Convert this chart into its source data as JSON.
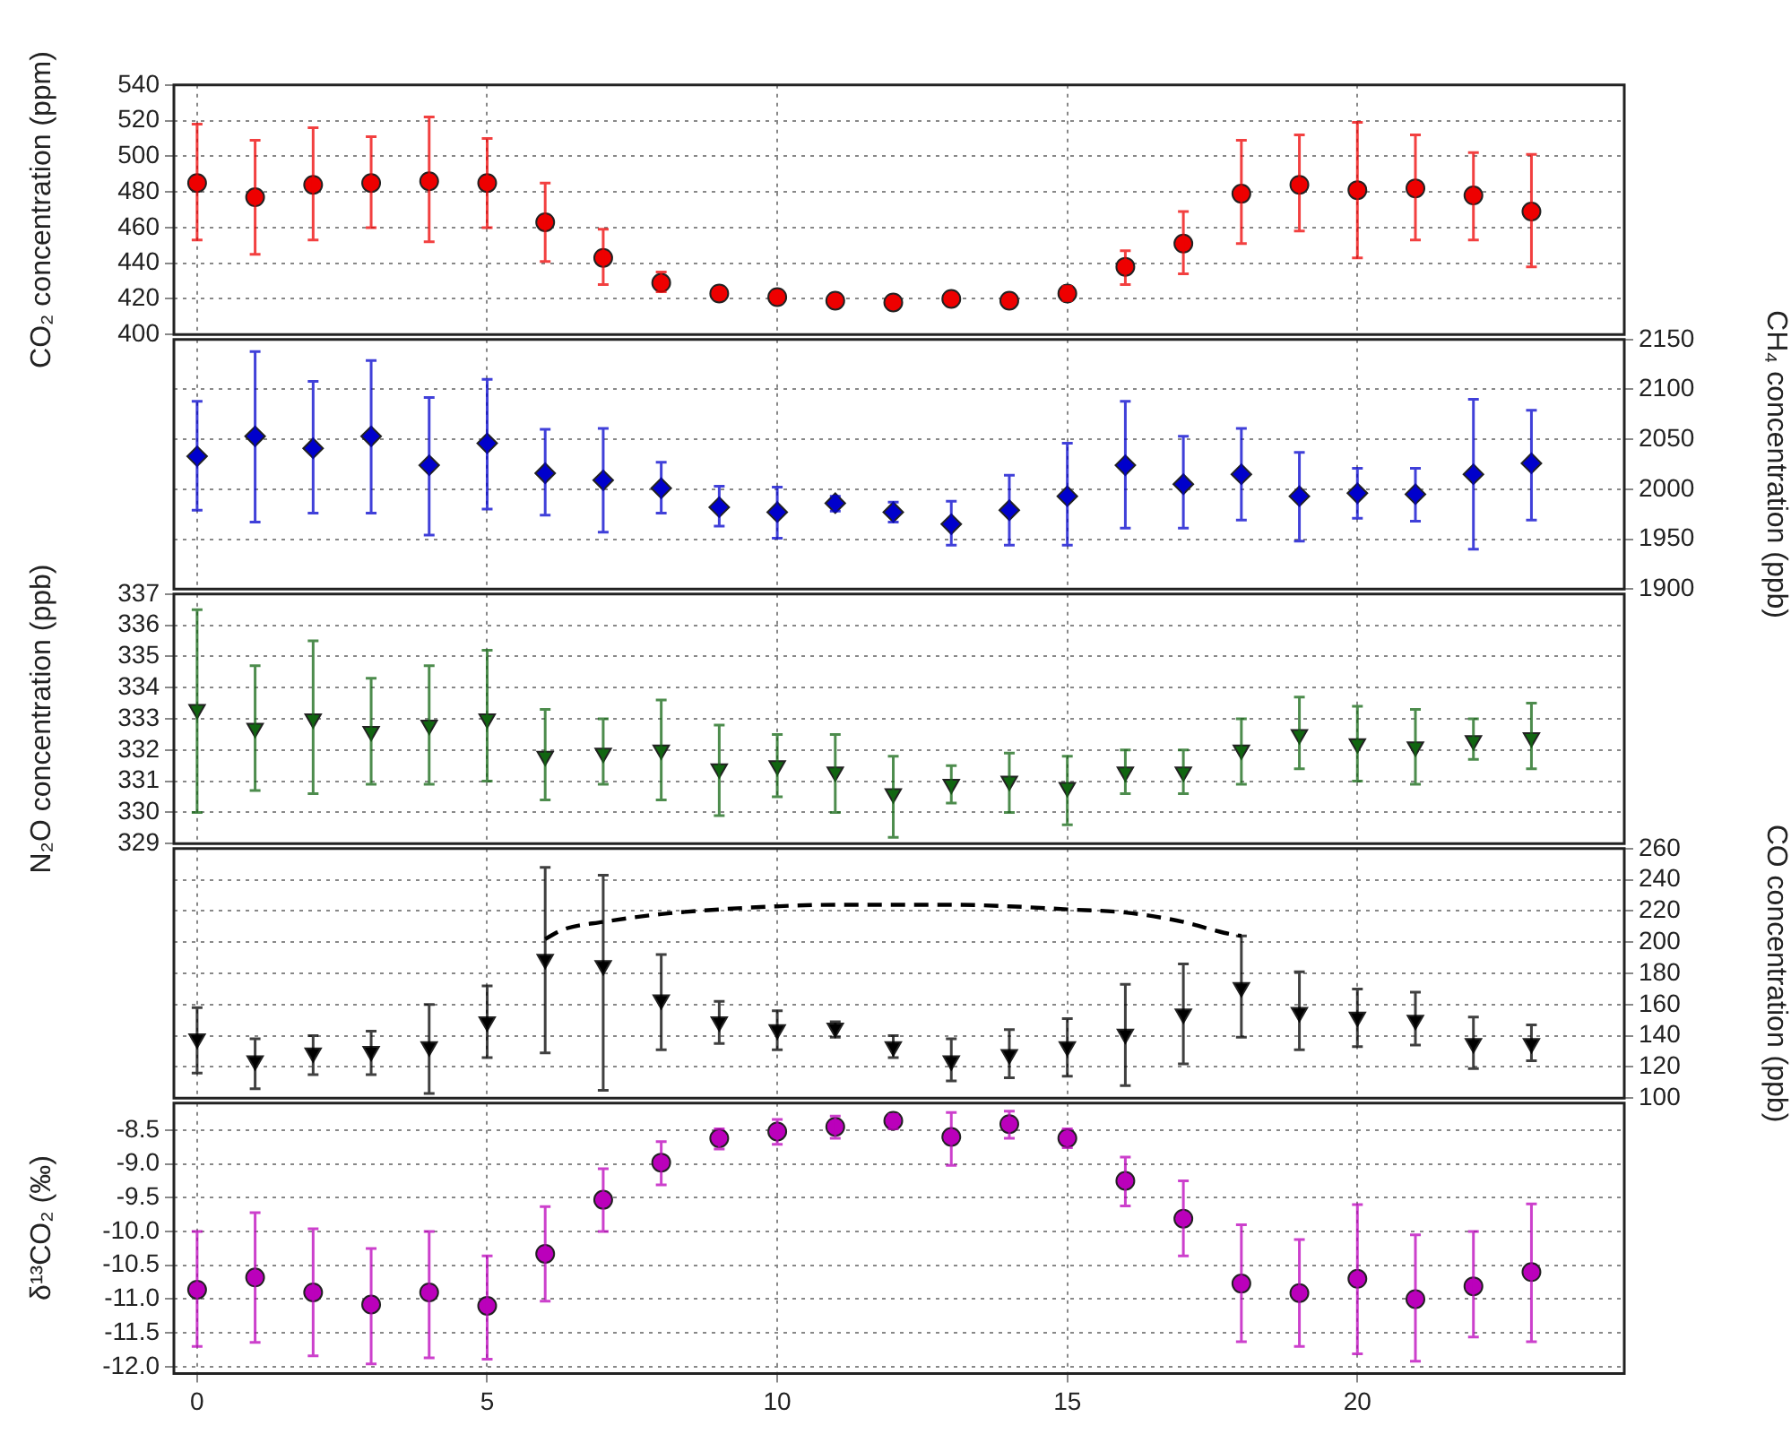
{
  "chart_data": [
    {
      "type": "scatter",
      "ylabel": "CO₂ concentration (ppm)",
      "x": [
        0,
        1,
        2,
        3,
        4,
        5,
        6,
        7,
        8,
        9,
        10,
        11,
        12,
        13,
        14,
        15,
        16,
        17,
        18,
        19,
        20,
        21,
        22,
        23
      ],
      "xlim": [
        -0.4,
        24.6
      ],
      "xticks": [
        {
          "value": 0,
          "label": null
        },
        {
          "value": 5,
          "label": null
        },
        {
          "value": 10,
          "label": null
        },
        {
          "value": 15,
          "label": null
        },
        {
          "value": 20,
          "label": null
        }
      ],
      "ylim": [
        400,
        540
      ],
      "yticks": [
        400,
        420,
        440,
        460,
        480,
        500,
        520,
        540
      ],
      "grid": true,
      "tick_labels": "y",
      "series": [
        {
          "type": "scatter",
          "color": "#ee0000",
          "marker": "circle",
          "values": [
            485,
            477,
            484,
            485,
            486,
            485,
            463,
            443,
            429,
            423,
            421,
            419,
            418,
            420,
            419,
            423,
            438,
            451,
            479,
            484,
            481,
            482,
            478,
            469
          ],
          "errors": [
            [
              453,
              518
            ],
            [
              445,
              509
            ],
            [
              453,
              516
            ],
            [
              460,
              511
            ],
            [
              452,
              522
            ],
            [
              460,
              510
            ],
            [
              441,
              485
            ],
            [
              428,
              459
            ],
            [
              424,
              435
            ],
            [
              420,
              426
            ],
            [
              418,
              424
            ],
            [
              418,
              420
            ],
            [
              417,
              419
            ],
            [
              419,
              421
            ],
            [
              418,
              420
            ],
            [
              419,
              427
            ],
            [
              428,
              447
            ],
            [
              434,
              469
            ],
            [
              451,
              509
            ],
            [
              458,
              512
            ],
            [
              443,
              519
            ],
            [
              453,
              512
            ],
            [
              453,
              502
            ],
            [
              438,
              501
            ]
          ]
        }
      ]
    },
    {
      "type": "scatter",
      "ylabel": "CH₄ concentration (ppb)",
      "x": [
        0,
        1,
        2,
        3,
        4,
        5,
        6,
        7,
        8,
        9,
        10,
        11,
        12,
        13,
        14,
        15,
        16,
        17,
        18,
        19,
        20,
        21,
        22,
        23
      ],
      "xlim": [
        -0.4,
        24.6
      ],
      "xticks": [
        {
          "value": 0,
          "label": null
        },
        {
          "value": 5,
          "label": null
        },
        {
          "value": 10,
          "label": null
        },
        {
          "value": 15,
          "label": null
        },
        {
          "value": 20,
          "label": null
        }
      ],
      "ylim": [
        1900,
        2150
      ],
      "yticks": [
        1900,
        1950,
        2000,
        2050,
        2100,
        2150
      ],
      "grid": true,
      "tick_labels": "y",
      "series": [
        {
          "type": "scatter",
          "color": "#0000cc",
          "marker": "diamond",
          "values": [
            2033,
            2053,
            2041,
            2053,
            2024,
            2046,
            2016,
            2009,
            2001,
            1982,
            1977,
            1986,
            1977,
            1965,
            1979,
            1993,
            2024,
            2005,
            2015,
            1993,
            1996,
            1995,
            2015,
            2026
          ],
          "errors": [
            [
              1979,
              2088
            ],
            [
              1967,
              2138
            ],
            [
              1976,
              2108
            ],
            [
              1976,
              2129
            ],
            [
              1954,
              2092
            ],
            [
              1980,
              2110
            ],
            [
              1974,
              2060
            ],
            [
              1957,
              2061
            ],
            [
              1976,
              2027
            ],
            [
              1963,
              2003
            ],
            [
              1951,
              2002
            ],
            [
              1978,
              1993
            ],
            [
              1967,
              1987
            ],
            [
              1944,
              1988
            ],
            [
              1944,
              2014
            ],
            [
              1944,
              2046
            ],
            [
              1961,
              2088
            ],
            [
              1961,
              2053
            ],
            [
              1969,
              2061
            ],
            [
              1948,
              2037
            ],
            [
              1971,
              2021
            ],
            [
              1968,
              2021
            ],
            [
              1940,
              2090
            ],
            [
              1969,
              2079
            ]
          ]
        }
      ]
    },
    {
      "type": "scatter",
      "ylabel": "N₂O concentration (ppb)",
      "x": [
        0,
        1,
        2,
        3,
        4,
        5,
        6,
        7,
        8,
        9,
        10,
        11,
        12,
        13,
        14,
        15,
        16,
        17,
        18,
        19,
        20,
        21,
        22,
        23
      ],
      "xlim": [
        -0.4,
        24.6
      ],
      "xticks": [
        {
          "value": 0,
          "label": null
        },
        {
          "value": 5,
          "label": null
        },
        {
          "value": 10,
          "label": null
        },
        {
          "value": 15,
          "label": null
        },
        {
          "value": 20,
          "label": null
        }
      ],
      "ylim": [
        329,
        337
      ],
      "yticks": [
        329,
        330,
        331,
        332,
        333,
        334,
        335,
        336,
        337
      ],
      "grid": true,
      "tick_labels": "y",
      "series": [
        {
          "type": "scatter",
          "color": "#116611",
          "marker": "triangle",
          "values": [
            333.3,
            332.7,
            333.0,
            332.6,
            332.8,
            333.0,
            331.8,
            331.9,
            332.0,
            331.4,
            331.5,
            331.3,
            330.6,
            330.9,
            331.0,
            330.8,
            331.3,
            331.3,
            332.0,
            332.5,
            332.2,
            332.1,
            332.3,
            332.4
          ],
          "errors": [
            [
              330.0,
              336.5
            ],
            [
              330.7,
              334.7
            ],
            [
              330.6,
              335.5
            ],
            [
              330.9,
              334.3
            ],
            [
              330.9,
              334.7
            ],
            [
              331.0,
              335.2
            ],
            [
              330.4,
              333.3
            ],
            [
              330.9,
              333.0
            ],
            [
              330.4,
              333.6
            ],
            [
              329.9,
              332.8
            ],
            [
              330.5,
              332.5
            ],
            [
              330.0,
              332.5
            ],
            [
              329.2,
              331.8
            ],
            [
              330.3,
              331.5
            ],
            [
              330.0,
              331.9
            ],
            [
              329.6,
              331.8
            ],
            [
              330.6,
              332.0
            ],
            [
              330.6,
              332.0
            ],
            [
              330.9,
              333.0
            ],
            [
              331.4,
              333.7
            ],
            [
              331.0,
              333.4
            ],
            [
              330.9,
              333.3
            ],
            [
              331.7,
              333.0
            ],
            [
              331.4,
              333.5
            ]
          ]
        }
      ]
    },
    {
      "type": "scatter",
      "ylabel": "CO concentration (ppb)",
      "x": [
        0,
        1,
        2,
        3,
        4,
        5,
        6,
        7,
        8,
        9,
        10,
        11,
        12,
        13,
        14,
        15,
        16,
        17,
        18,
        19,
        20,
        21,
        22,
        23
      ],
      "xlim": [
        -0.4,
        24.6
      ],
      "xticks": [
        {
          "value": 0,
          "label": null
        },
        {
          "value": 5,
          "label": null
        },
        {
          "value": 10,
          "label": null
        },
        {
          "value": 15,
          "label": null
        },
        {
          "value": 20,
          "label": null
        }
      ],
      "ylim": [
        100,
        260
      ],
      "yticks": [
        100,
        120,
        140,
        160,
        180,
        200,
        220,
        240,
        260
      ],
      "grid": true,
      "tick_labels": "y",
      "series": [
        {
          "type": "scatter",
          "color": "#000000",
          "marker": "triangle",
          "values": [
            138,
            124,
            129,
            130,
            133,
            149,
            189,
            185,
            163,
            149,
            144,
            145,
            133,
            124,
            128,
            133,
            141,
            154,
            171,
            155,
            152,
            150,
            135,
            135
          ],
          "errors": [
            [
              116,
              158
            ],
            [
              106,
              138
            ],
            [
              115,
              140
            ],
            [
              115,
              143
            ],
            [
              103,
              160
            ],
            [
              126,
              172
            ],
            [
              129,
              248
            ],
            [
              105,
              243
            ],
            [
              131,
              192
            ],
            [
              135,
              162
            ],
            [
              131,
              156
            ],
            [
              139,
              149
            ],
            [
              126,
              140
            ],
            [
              111,
              138
            ],
            [
              113,
              144
            ],
            [
              114,
              151
            ],
            [
              108,
              173
            ],
            [
              122,
              186
            ],
            [
              139,
              204
            ],
            [
              131,
              181
            ],
            [
              133,
              170
            ],
            [
              134,
              168
            ],
            [
              119,
              152
            ],
            [
              124,
              147
            ]
          ]
        },
        {
          "type": "line",
          "color": "#000000",
          "marker": "none",
          "line_style": "dashed",
          "x": [
            6,
            6.3,
            7,
            8,
            9,
            10,
            11,
            12,
            13,
            14,
            15,
            16,
            17,
            17.7,
            18
          ],
          "values": [
            202,
            208,
            213,
            218,
            221,
            223,
            224,
            224,
            224,
            223,
            221,
            219,
            213,
            206,
            204
          ]
        }
      ]
    },
    {
      "type": "scatter",
      "ylabel": "δ¹³CO₂ (‰)",
      "x": [
        0,
        1,
        2,
        3,
        4,
        5,
        6,
        7,
        8,
        9,
        10,
        11,
        12,
        13,
        14,
        15,
        16,
        17,
        18,
        19,
        20,
        21,
        22,
        23
      ],
      "xlim": [
        -0.4,
        24.6
      ],
      "xticks": [
        0,
        5,
        10,
        15,
        20
      ],
      "ylim": [
        -12.1,
        -8.1
      ],
      "yticks": [
        {
          "value": -12,
          "label": "-12.0"
        },
        -11.5,
        {
          "value": -11,
          "label": "-11.0"
        },
        -10.5,
        {
          "value": -10,
          "label": "-10.0"
        },
        -9.5,
        {
          "value": -9,
          "label": "-9.0"
        },
        -8.5
      ],
      "grid": true,
      "series": [
        {
          "type": "scatter",
          "color": "#bb00bb",
          "marker": "circle",
          "values": [
            -10.86,
            -10.68,
            -10.9,
            -11.08,
            -10.9,
            -11.1,
            -10.33,
            -9.53,
            -8.98,
            -8.62,
            -8.52,
            -8.45,
            -8.36,
            -8.6,
            -8.41,
            -8.62,
            -9.25,
            -9.81,
            -10.77,
            -10.91,
            -10.7,
            -11.0,
            -10.81,
            -10.6
          ],
          "errors": [
            [
              -11.7,
              -10.0
            ],
            [
              -11.64,
              -9.72
            ],
            [
              -11.84,
              -9.96
            ],
            [
              -11.96,
              -10.25
            ],
            [
              -11.87,
              -10.0
            ],
            [
              -11.89,
              -10.36
            ],
            [
              -11.03,
              -9.63
            ],
            [
              -10.0,
              -9.07
            ],
            [
              -9.31,
              -8.67
            ],
            [
              -8.78,
              -8.48
            ],
            [
              -8.71,
              -8.34
            ],
            [
              -8.62,
              -8.29
            ],
            [
              -8.48,
              -8.27
            ],
            [
              -9.02,
              -8.24
            ],
            [
              -8.62,
              -8.22
            ],
            [
              -8.76,
              -8.48
            ],
            [
              -9.62,
              -8.9
            ],
            [
              -10.36,
              -9.25
            ],
            [
              -11.63,
              -9.9
            ],
            [
              -11.7,
              -10.12
            ],
            [
              -11.81,
              -9.6
            ],
            [
              -11.92,
              -10.05
            ],
            [
              -11.56,
              -10.0
            ],
            [
              -11.63,
              -9.59
            ]
          ]
        }
      ]
    }
  ]
}
